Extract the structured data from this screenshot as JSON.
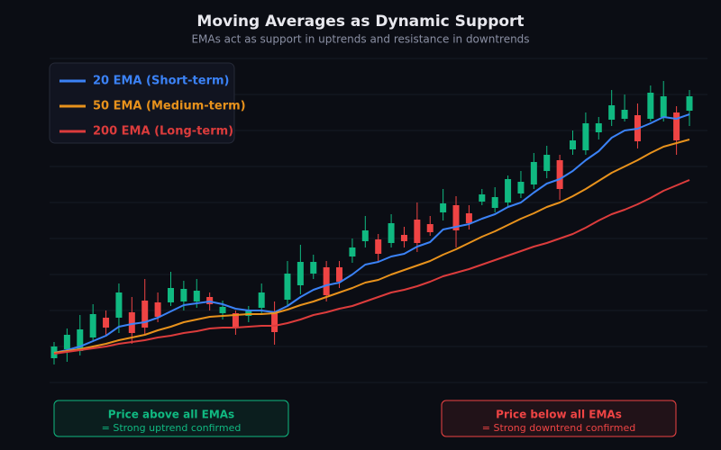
{
  "chart_data": {
    "type": "candlestick",
    "title": "Moving Averages as Dynamic Support",
    "subtitle": "EMAs act as support in uptrends and resistance in downtrends",
    "ylim": [
      0,
      360
    ],
    "yticks": [
      0,
      40,
      80,
      120,
      160,
      200,
      240,
      280,
      320,
      360
    ],
    "grid": true,
    "tick_labels": false,
    "up_color": "#10b981",
    "down_color": "#ef4444",
    "open": [
      27,
      37,
      35,
      50,
      72,
      72,
      78,
      91,
      89,
      89,
      90,
      90,
      95,
      77,
      77,
      74,
      83,
      78,
      92,
      108,
      121,
      128,
      128,
      140,
      157,
      159,
      155,
      164,
      181,
      176,
      189,
      197,
      188,
      201,
      194,
      200,
      210,
      220,
      235,
      247,
      259,
      258,
      278,
      292,
      293,
      297,
      293,
      295,
      300,
      302
    ],
    "high": [
      45,
      60,
      75,
      87,
      80,
      110,
      95,
      115,
      100,
      123,
      113,
      115,
      100,
      91,
      80,
      85,
      110,
      90,
      135,
      153,
      142,
      135,
      135,
      160,
      185,
      165,
      187,
      173,
      200,
      185,
      215,
      207,
      197,
      215,
      217,
      230,
      235,
      255,
      263,
      253,
      280,
      300,
      295,
      325,
      320,
      310,
      330,
      335,
      307,
      325
    ],
    "low": [
      20,
      23,
      30,
      47,
      53,
      55,
      43,
      53,
      67,
      85,
      80,
      83,
      80,
      70,
      53,
      67,
      75,
      42,
      85,
      98,
      115,
      90,
      105,
      133,
      150,
      135,
      150,
      150,
      145,
      163,
      180,
      150,
      170,
      197,
      189,
      195,
      205,
      215,
      227,
      203,
      253,
      253,
      270,
      285,
      290,
      260,
      290,
      290,
      253,
      285
    ],
    "close": [
      40,
      53,
      59,
      76,
      61,
      100,
      55,
      61,
      73,
      105,
      104,
      102,
      87,
      84,
      61,
      81,
      100,
      56,
      121,
      134,
      134,
      97,
      112,
      150,
      169,
      143,
      177,
      157,
      155,
      167,
      199,
      169,
      177,
      209,
      206,
      226,
      223,
      245,
      253,
      215,
      269,
      288,
      288,
      308,
      303,
      268,
      322,
      318,
      269,
      318
    ],
    "series": [
      {
        "name": "20 EMA (Short-term)",
        "color": "#3b82f6",
        "values": [
          33,
          36,
          40,
          46,
          52,
          62,
          65,
          67,
          72,
          79,
          86,
          88,
          90,
          87,
          82,
          80,
          80,
          78,
          85,
          95,
          103,
          108,
          111,
          120,
          131,
          134,
          140,
          143,
          151,
          156,
          170,
          173,
          176,
          182,
          187,
          195,
          200,
          211,
          221,
          226,
          235,
          247,
          257,
          272,
          280,
          282,
          288,
          295,
          293,
          298
        ]
      },
      {
        "name": "50 EMA (Medium-term)",
        "color": "#e8921c",
        "values": [
          33,
          35,
          37,
          40,
          43,
          47,
          50,
          53,
          58,
          62,
          67,
          70,
          73,
          74,
          75,
          76,
          76,
          77,
          81,
          86,
          90,
          95,
          100,
          105,
          111,
          114,
          120,
          125,
          130,
          135,
          142,
          148,
          155,
          162,
          168,
          175,
          182,
          188,
          195,
          200,
          207,
          215,
          224,
          233,
          240,
          247,
          255,
          262,
          266,
          270
        ]
      },
      {
        "name": "200 EMA (Long-term)",
        "color": "#dc3c3c",
        "values": [
          32,
          34,
          36,
          38,
          40,
          43,
          45,
          47,
          50,
          52,
          55,
          57,
          60,
          61,
          61,
          62,
          63,
          63,
          66,
          70,
          75,
          78,
          82,
          85,
          90,
          95,
          100,
          103,
          107,
          112,
          118,
          122,
          126,
          131,
          136,
          141,
          146,
          151,
          155,
          160,
          165,
          172,
          180,
          187,
          192,
          198,
          205,
          213,
          219,
          225
        ]
      }
    ],
    "legend": "upper left",
    "annotations": [
      {
        "title": "Price above all EMAs",
        "text": "= Strong uptrend confirmed",
        "color": "#10b981",
        "position": "lower left"
      },
      {
        "title": "Price below all EMAs",
        "text": "= Strong downtrend confirmed",
        "color": "#ef4444",
        "position": "lower right"
      }
    ]
  }
}
